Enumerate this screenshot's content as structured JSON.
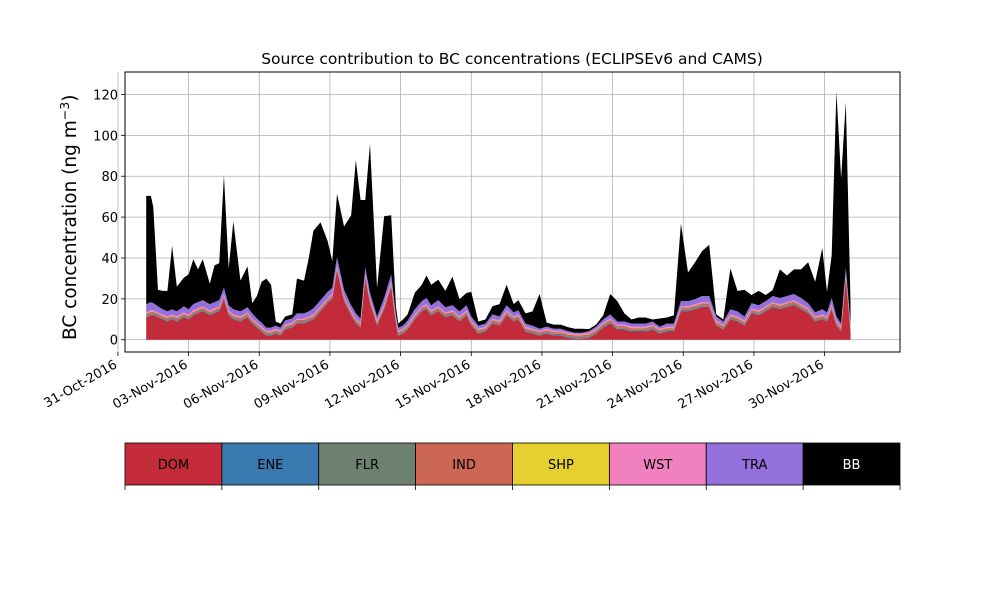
{
  "chart_data": {
    "type": "area",
    "stacked": true,
    "title": "Source contribution to BC concentrations (ECLIPSEv6 and CAMS)",
    "ylabel": "BC concentration (ng m",
    "ylabel_sup": "−3",
    "ylabel_close": ")",
    "xlabel": "",
    "ylim": [
      -6,
      131
    ],
    "xlim": [
      "2016-10-31",
      "2016-12-03"
    ],
    "grid": true,
    "yticks": [
      0,
      20,
      40,
      60,
      80,
      100,
      120
    ],
    "xticks": [
      "31-Oct-2016",
      "03-Nov-2016",
      "06-Nov-2016",
      "09-Nov-2016",
      "12-Nov-2016",
      "15-Nov-2016",
      "18-Nov-2016",
      "21-Nov-2016",
      "24-Nov-2016",
      "27-Nov-2016",
      "30-Nov-2016"
    ],
    "x_days_from_oct31": [
      1.2,
      1.4,
      1.5,
      1.7,
      1.9,
      2.1,
      2.3,
      2.5,
      2.8,
      3.0,
      3.2,
      3.4,
      3.6,
      3.9,
      4.1,
      4.3,
      4.5,
      4.7,
      4.9,
      5.2,
      5.5,
      5.7,
      5.9,
      6.1,
      6.3,
      6.5,
      6.7,
      6.9,
      7.1,
      7.4,
      7.6,
      7.9,
      8.1,
      8.3,
      8.6,
      8.9,
      9.1,
      9.3,
      9.6,
      9.9,
      10.1,
      10.3,
      10.5,
      10.7,
      11.0,
      11.3,
      11.6,
      11.8,
      11.9,
      12.1,
      12.3,
      12.6,
      12.9,
      13.1,
      13.3,
      13.6,
      13.9,
      14.2,
      14.5,
      14.8,
      15.0,
      15.3,
      15.6,
      15.9,
      16.2,
      16.5,
      16.8,
      17.0,
      17.3,
      17.6,
      17.9,
      18.2,
      18.5,
      18.8,
      19.1,
      19.4,
      19.7,
      20.0,
      20.3,
      20.6,
      20.9,
      21.2,
      21.5,
      21.8,
      22.1,
      22.4,
      22.7,
      23.0,
      23.3,
      23.6,
      23.9,
      24.2,
      24.5,
      24.8,
      25.1,
      25.4,
      25.7,
      26.0,
      26.3,
      26.6,
      26.9,
      27.2,
      27.5,
      27.8,
      28.1,
      28.4,
      28.7,
      29.0,
      29.3,
      29.6,
      29.9,
      30.1,
      30.3,
      30.5,
      30.7,
      30.9,
      31.1
    ],
    "series": [
      {
        "name": "DOM",
        "color": "#c42b3a",
        "values": [
          11,
          12,
          12,
          11,
          10,
          9,
          10,
          9,
          11,
          10,
          12,
          13,
          14,
          12,
          13,
          14,
          20,
          12,
          10,
          9,
          11,
          8,
          6,
          4,
          2,
          2,
          3,
          2,
          5,
          6,
          8,
          8,
          9,
          10,
          14,
          18,
          20,
          34,
          19,
          12,
          8,
          6,
          30,
          18,
          7,
          15,
          26,
          8,
          2,
          3,
          5,
          10,
          14,
          15,
          12,
          14,
          11,
          12,
          9,
          12,
          7,
          3,
          4,
          8,
          7,
          12,
          9,
          10,
          4,
          3,
          2,
          3,
          2,
          2,
          1,
          0.5,
          0.5,
          1,
          3,
          6,
          8,
          5,
          5,
          4,
          4,
          4,
          5,
          3,
          4,
          4,
          14,
          14,
          15,
          16,
          16,
          7,
          5,
          10,
          9,
          7,
          13,
          12,
          14,
          16,
          15,
          16,
          17,
          15,
          13,
          9,
          10,
          9,
          15,
          7,
          4,
          30,
          4
        ]
      },
      {
        "name": "ENE",
        "color": "#3a78b0",
        "values": [
          0.3,
          0.3,
          0.3,
          0.3,
          0.3,
          0.3,
          0.3,
          0.3,
          0.3,
          0.3,
          0.3,
          0.3,
          0.3,
          0.3,
          0.3,
          0.3,
          0.3,
          0.3,
          0.3,
          0.3,
          0.3,
          0.3,
          0.3,
          0.3,
          0.3,
          0.3,
          0.3,
          0.3,
          0.3,
          0.3,
          0.3,
          0.3,
          0.3,
          0.3,
          0.3,
          0.3,
          0.3,
          0.3,
          0.3,
          0.3,
          0.3,
          0.3,
          0.3,
          0.3,
          0.3,
          0.3,
          0.3,
          0.3,
          0.3,
          0.3,
          0.3,
          0.3,
          0.3,
          0.3,
          0.3,
          0.3,
          0.3,
          0.3,
          0.3,
          0.3,
          0.3,
          0.3,
          0.3,
          0.3,
          0.3,
          0.3,
          0.3,
          0.3,
          0.3,
          0.3,
          0.3,
          0.3,
          0.3,
          0.3,
          0.3,
          0.3,
          0.3,
          0.3,
          0.3,
          0.3,
          0.3,
          0.3,
          0.3,
          0.3,
          0.3,
          0.3,
          0.3,
          0.3,
          0.3,
          0.3,
          0.3,
          0.3,
          0.3,
          0.3,
          0.3,
          0.3,
          0.3,
          0.3,
          0.3,
          0.3,
          0.3,
          0.3,
          0.3,
          0.3,
          0.3,
          0.3,
          0.3,
          0.3,
          0.3,
          0.3,
          0.3,
          0.3,
          0.3,
          0.3,
          0.3,
          0.3,
          0.3
        ]
      },
      {
        "name": "FLR",
        "color": "#6e8070",
        "values": [
          0.6,
          0.6,
          0.6,
          0.6,
          0.6,
          0.6,
          0.6,
          0.6,
          0.6,
          0.6,
          0.6,
          0.6,
          0.6,
          0.6,
          0.6,
          0.6,
          0.6,
          0.6,
          0.6,
          0.6,
          0.6,
          0.6,
          0.6,
          0.6,
          0.6,
          0.6,
          0.6,
          0.6,
          0.6,
          0.6,
          0.6,
          0.6,
          0.6,
          0.6,
          0.6,
          0.6,
          0.6,
          0.6,
          0.6,
          0.6,
          0.6,
          0.6,
          0.6,
          0.6,
          0.6,
          0.6,
          0.6,
          0.6,
          0.6,
          0.6,
          0.6,
          0.6,
          0.6,
          0.6,
          0.6,
          0.6,
          0.6,
          0.6,
          0.6,
          0.6,
          0.6,
          0.6,
          0.6,
          0.6,
          0.6,
          0.6,
          0.6,
          0.6,
          0.6,
          0.6,
          0.6,
          0.6,
          0.6,
          0.6,
          0.6,
          0.6,
          0.6,
          0.6,
          0.6,
          0.6,
          0.6,
          0.6,
          0.6,
          0.6,
          0.6,
          0.6,
          0.6,
          0.6,
          0.6,
          0.6,
          0.6,
          0.6,
          0.6,
          0.6,
          0.6,
          0.6,
          0.6,
          0.6,
          0.6,
          0.6,
          0.6,
          0.6,
          0.6,
          0.6,
          0.6,
          0.6,
          0.6,
          0.6,
          0.6,
          0.6,
          0.6,
          0.6,
          0.6,
          0.6,
          0.6,
          0.6,
          0.6
        ]
      },
      {
        "name": "IND",
        "color": "#cc6655",
        "values": [
          0.8,
          0.8,
          0.8,
          0.8,
          0.8,
          0.8,
          0.8,
          0.8,
          0.8,
          0.8,
          0.8,
          0.8,
          0.8,
          0.8,
          0.8,
          0.8,
          0.8,
          0.8,
          0.8,
          0.8,
          0.8,
          0.8,
          0.8,
          0.8,
          0.8,
          0.8,
          0.8,
          0.8,
          0.8,
          0.8,
          0.8,
          0.8,
          0.8,
          0.8,
          0.8,
          0.8,
          0.8,
          0.8,
          0.8,
          0.8,
          0.8,
          0.8,
          0.8,
          0.8,
          0.8,
          0.8,
          0.8,
          0.8,
          0.8,
          0.8,
          0.8,
          0.8,
          0.8,
          0.8,
          0.8,
          0.8,
          0.8,
          0.8,
          0.8,
          0.8,
          0.8,
          0.8,
          0.8,
          0.8,
          0.8,
          0.8,
          0.8,
          0.8,
          0.8,
          0.8,
          0.8,
          0.8,
          0.8,
          0.8,
          0.8,
          0.8,
          0.8,
          0.8,
          0.8,
          0.8,
          0.8,
          0.8,
          0.8,
          0.8,
          0.8,
          0.8,
          0.8,
          0.8,
          0.8,
          0.8,
          0.8,
          0.8,
          0.8,
          0.8,
          0.8,
          0.8,
          0.8,
          0.8,
          0.8,
          0.8,
          0.8,
          0.8,
          0.8,
          0.8,
          0.8,
          0.8,
          0.8,
          0.8,
          0.8,
          0.8,
          0.8,
          0.8,
          0.8,
          0.8,
          0.8,
          0.8,
          0.8
        ]
      },
      {
        "name": "SHP",
        "color": "#e6d030",
        "values": [
          0.1,
          0.1,
          0.1,
          0.1,
          0.1,
          0.1,
          0.1,
          0.1,
          0.1,
          0.1,
          0.1,
          0.1,
          0.1,
          0.1,
          0.1,
          0.1,
          0.1,
          0.1,
          0.1,
          0.1,
          0.1,
          0.1,
          0.1,
          0.1,
          0.1,
          0.1,
          0.1,
          0.1,
          0.1,
          0.1,
          0.1,
          0.1,
          0.1,
          0.1,
          0.1,
          0.1,
          0.1,
          0.1,
          0.1,
          0.1,
          0.1,
          0.1,
          0.1,
          0.1,
          0.1,
          0.1,
          0.1,
          0.1,
          0.1,
          0.1,
          0.1,
          0.1,
          0.1,
          0.1,
          0.1,
          0.1,
          0.1,
          0.1,
          0.1,
          0.1,
          0.1,
          0.1,
          0.1,
          0.1,
          0.1,
          0.1,
          0.1,
          0.1,
          0.1,
          0.1,
          0.1,
          0.1,
          0.1,
          0.1,
          0.1,
          0.1,
          0.1,
          0.1,
          0.1,
          0.1,
          0.1,
          0.1,
          0.1,
          0.1,
          0.1,
          0.1,
          0.1,
          0.1,
          0.1,
          0.1,
          0.1,
          0.1,
          0.1,
          0.1,
          0.1,
          0.1,
          0.1,
          0.1,
          0.1,
          0.1,
          0.1,
          0.1,
          0.1,
          0.1,
          0.1,
          0.1,
          0.1,
          0.1,
          0.1,
          0.1,
          0.1,
          0.1,
          0.1,
          0.1,
          0.1,
          0.1,
          0.1
        ]
      },
      {
        "name": "WST",
        "color": "#f080c0",
        "values": [
          0.6,
          0.6,
          0.6,
          0.6,
          0.6,
          0.6,
          0.6,
          0.6,
          0.6,
          0.6,
          0.6,
          0.6,
          0.6,
          0.6,
          0.6,
          0.6,
          0.6,
          0.6,
          0.6,
          0.6,
          0.6,
          0.6,
          0.6,
          0.6,
          0.6,
          0.6,
          0.6,
          0.6,
          0.6,
          0.6,
          0.6,
          0.6,
          0.6,
          0.6,
          0.6,
          0.6,
          0.6,
          0.6,
          0.6,
          0.6,
          0.6,
          0.6,
          0.6,
          0.6,
          0.6,
          0.6,
          0.6,
          0.6,
          0.6,
          0.6,
          0.6,
          0.6,
          0.6,
          0.6,
          0.6,
          0.6,
          0.6,
          0.6,
          0.6,
          0.6,
          0.6,
          0.6,
          0.6,
          0.6,
          0.6,
          0.6,
          0.6,
          0.6,
          0.6,
          0.6,
          0.6,
          0.6,
          0.6,
          0.6,
          0.6,
          0.6,
          0.6,
          0.6,
          0.6,
          0.6,
          0.6,
          0.6,
          0.6,
          0.6,
          0.6,
          0.6,
          0.6,
          0.6,
          0.6,
          0.6,
          0.6,
          0.6,
          0.6,
          0.6,
          0.6,
          0.6,
          0.6,
          0.6,
          0.6,
          0.6,
          0.6,
          0.6,
          0.6,
          0.6,
          0.6,
          0.6,
          0.6,
          0.6,
          0.6,
          0.6,
          0.6,
          0.6,
          0.6,
          0.6,
          0.6,
          0.6,
          0.6
        ]
      },
      {
        "name": "TRA",
        "color": "#9370db",
        "values": [
          4,
          4,
          3.5,
          3,
          2.5,
          2.5,
          2.5,
          2.5,
          3,
          2.5,
          3,
          3,
          3,
          3,
          3,
          3,
          3,
          2.5,
          2.5,
          2.5,
          2.5,
          2.5,
          2,
          2,
          1.5,
          1.5,
          1.5,
          1.5,
          2,
          2,
          2.5,
          2.5,
          2.5,
          3,
          3,
          3,
          3,
          4,
          3,
          2.5,
          2.5,
          2,
          3,
          2.5,
          2,
          3,
          3.5,
          2,
          1.5,
          1.5,
          2,
          2.5,
          2.5,
          3,
          2.5,
          3,
          2.5,
          2.5,
          2.5,
          2.5,
          2,
          1.5,
          1.5,
          2,
          2,
          2.5,
          2,
          2,
          1.5,
          1.5,
          1,
          1,
          1,
          1,
          0.8,
          0.5,
          0.5,
          0.8,
          1,
          1.5,
          2,
          1.5,
          1.5,
          1.5,
          1.5,
          1.5,
          1.5,
          1,
          1.5,
          1.5,
          2.5,
          2.5,
          2.5,
          3,
          3,
          2,
          1.5,
          2.5,
          2.5,
          2,
          2.5,
          2.5,
          2.5,
          3,
          3,
          3,
          3,
          3,
          2.5,
          2,
          2.5,
          2,
          3,
          2,
          1.5,
          3,
          1.5
        ]
      },
      {
        "name": "BB",
        "color": "#000000",
        "values": [
          53,
          52,
          47,
          8,
          9,
          10,
          31,
          12,
          14,
          17,
          22,
          16,
          20,
          10,
          18,
          18,
          55,
          18,
          43,
          15,
          20,
          5,
          11,
          20,
          24,
          21,
          2,
          2,
          2,
          2,
          17,
          16,
          26,
          38,
          38,
          25,
          13,
          31,
          31,
          44,
          75,
          58,
          33,
          73,
          14,
          40,
          29,
          4,
          2,
          3,
          3,
          8,
          8,
          11,
          10,
          10,
          8,
          14,
          6,
          6,
          12,
          2,
          2,
          4,
          6,
          10,
          4,
          5,
          5,
          7,
          17,
          2,
          2,
          2,
          2,
          2,
          2,
          1,
          1,
          2,
          10,
          10,
          4,
          2,
          3,
          3,
          1,
          4,
          3,
          4,
          38,
          14,
          18,
          22,
          25,
          1,
          1,
          20,
          10,
          13,
          4,
          7,
          3,
          3,
          14,
          10,
          12,
          14,
          20,
          15,
          30,
          10,
          21,
          110,
          71,
          81,
          10
        ]
      }
    ],
    "legend": {
      "placement": "bottom",
      "labels": [
        "DOM",
        "ENE",
        "FLR",
        "IND",
        "SHP",
        "WST",
        "TRA",
        "BB"
      ]
    }
  }
}
